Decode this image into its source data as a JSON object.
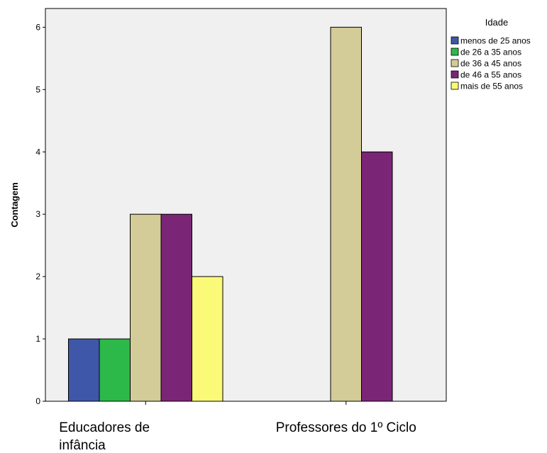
{
  "chart_data": {
    "type": "bar",
    "ylabel": "Contagem",
    "xlabel": "",
    "ylim": [
      0,
      6.3
    ],
    "yticks": [
      0,
      1,
      2,
      3,
      4,
      5,
      6
    ],
    "categories": [
      "Educadores de infância",
      "Professores do 1º Ciclo"
    ],
    "category_label_lines": [
      [
        "Educadores de",
        "infância"
      ],
      [
        "Professores do 1º Ciclo"
      ]
    ],
    "legend_title": "Idade",
    "legend_position": "top-right",
    "grid": false,
    "background": "#f0f0f0",
    "series": [
      {
        "name": "menos de 25 anos",
        "color": "#3f57a9",
        "values": [
          1,
          0
        ]
      },
      {
        "name": "de 26 a 35 anos",
        "color": "#2db84a",
        "values": [
          1,
          0
        ]
      },
      {
        "name": "de 36 a 45 anos",
        "color": "#d3cc98",
        "values": [
          3,
          6
        ]
      },
      {
        "name": "de 46 a 55 anos",
        "color": "#7b2576",
        "values": [
          3,
          4
        ]
      },
      {
        "name": "mais de 55 anos",
        "color": "#fafa78",
        "values": [
          2,
          0
        ]
      }
    ]
  }
}
